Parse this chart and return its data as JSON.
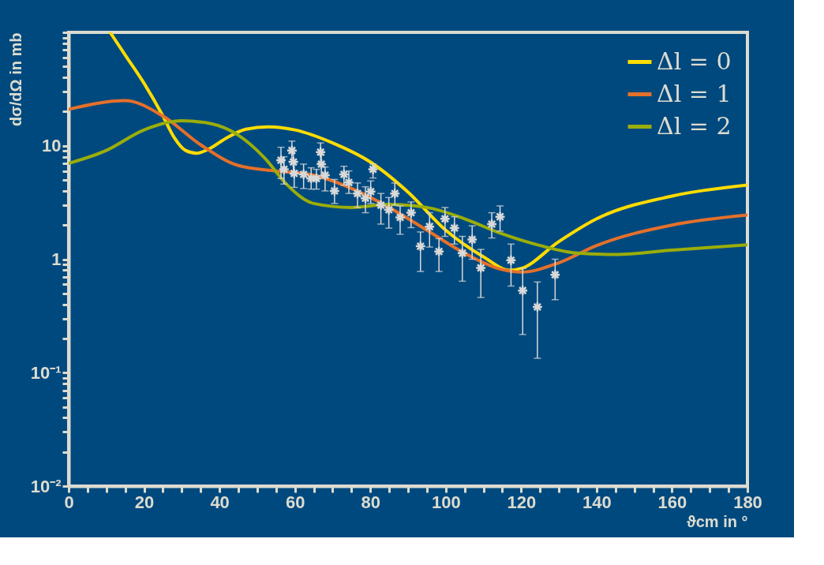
{
  "chart_data": {
    "type": "line",
    "xlabel": "ϑcm in °",
    "ylabel": "dσ/dΩ in mb",
    "log": "y",
    "legend": "top right",
    "marker": "none",
    "line_style": "solid",
    "xlim": [
      0,
      180
    ],
    "ylim": [
      0.01,
      100
    ],
    "xticks": [
      0,
      {
        "value": 5,
        "label": null
      },
      {
        "value": 10,
        "label": null
      },
      {
        "value": 15,
        "label": null
      },
      20,
      {
        "value": 25,
        "label": null
      },
      {
        "value": 30,
        "label": null
      },
      {
        "value": 35,
        "label": null
      },
      40,
      {
        "value": 45,
        "label": null
      },
      {
        "value": 50,
        "label": null
      },
      {
        "value": 55,
        "label": null
      },
      60,
      {
        "value": 65,
        "label": null
      },
      {
        "value": 70,
        "label": null
      },
      {
        "value": 75,
        "label": null
      },
      80,
      {
        "value": 85,
        "label": null
      },
      {
        "value": 90,
        "label": null
      },
      {
        "value": 95,
        "label": null
      },
      100,
      {
        "value": 105,
        "label": null
      },
      {
        "value": 110,
        "label": null
      },
      {
        "value": 115,
        "label": null
      },
      120,
      {
        "value": 125,
        "label": null
      },
      {
        "value": 130,
        "label": null
      },
      {
        "value": 135,
        "label": null
      },
      140,
      {
        "value": 145,
        "label": null
      },
      {
        "value": 150,
        "label": null
      },
      {
        "value": 155,
        "label": null
      },
      160,
      {
        "value": 165,
        "label": null
      },
      {
        "value": 170,
        "label": null
      },
      {
        "value": 175,
        "label": null
      },
      180
    ],
    "yticks": [
      {
        "value": 0.01,
        "label": "10⁻²"
      },
      {
        "value": 0.02,
        "label": null
      },
      {
        "value": 0.03,
        "label": null
      },
      {
        "value": 0.04,
        "label": null
      },
      {
        "value": 0.05,
        "label": null
      },
      {
        "value": 0.06,
        "label": null
      },
      {
        "value": 0.07,
        "label": null
      },
      {
        "value": 0.08,
        "label": null
      },
      {
        "value": 0.09,
        "label": null
      },
      {
        "value": 0.1,
        "label": "10⁻¹"
      },
      {
        "value": 0.2,
        "label": null
      },
      {
        "value": 0.3,
        "label": null
      },
      {
        "value": 0.4,
        "label": null
      },
      {
        "value": 0.5,
        "label": null
      },
      {
        "value": 0.6,
        "label": null
      },
      {
        "value": 0.7,
        "label": null
      },
      {
        "value": 0.8,
        "label": null
      },
      {
        "value": 0.9,
        "label": null
      },
      1,
      {
        "value": 2,
        "label": null
      },
      {
        "value": 3,
        "label": null
      },
      {
        "value": 4,
        "label": null
      },
      {
        "value": 5,
        "label": null
      },
      {
        "value": 6,
        "label": null
      },
      {
        "value": 7,
        "label": null
      },
      {
        "value": 8,
        "label": null
      },
      {
        "value": 9,
        "label": null
      },
      10,
      {
        "value": 20,
        "label": null
      },
      {
        "value": 30,
        "label": null
      },
      {
        "value": 40,
        "label": null
      },
      {
        "value": 50,
        "label": null
      },
      {
        "value": 60,
        "label": null
      },
      {
        "value": 70,
        "label": null
      },
      {
        "value": 80,
        "label": null
      },
      {
        "value": 90,
        "label": null
      },
      {
        "value": 100,
        "label": null
      }
    ],
    "series": [
      {
        "name": "Δl = 0",
        "type": "line",
        "color": "#ffdc00",
        "x": [
          11,
          15,
          20,
          25,
          28,
          31,
          34,
          37,
          42,
          47,
          53,
          60,
          70,
          80,
          90,
          100,
          110,
          117,
          120,
          130,
          140,
          160,
          180
        ],
        "values": [
          100,
          63,
          35.5,
          18.3,
          11.8,
          9.1,
          8.6,
          9.3,
          11.8,
          14,
          14.7,
          13.8,
          10.6,
          7.2,
          3.9,
          1.8,
          1.05,
          0.8,
          0.83,
          1.43,
          2.27,
          3.6,
          4.5
        ]
      },
      {
        "name": "Δl = 1",
        "type": "line",
        "color": "#e5702a",
        "x": [
          0,
          15,
          25,
          35,
          45,
          55,
          65,
          75,
          85,
          95,
          105,
          115,
          120,
          130,
          140,
          160,
          180
        ],
        "values": [
          21,
          25,
          18.3,
          10.2,
          6.7,
          6.0,
          5.5,
          4.2,
          2.86,
          1.8,
          1.13,
          0.81,
          0.77,
          0.93,
          1.32,
          2.0,
          2.45
        ]
      },
      {
        "name": "Δl = 2",
        "type": "line",
        "color": "#9aad0a",
        "x": [
          0,
          10,
          20,
          30,
          38,
          45,
          52,
          58,
          65,
          75,
          85,
          95,
          105,
          115,
          125,
          135,
          145,
          160,
          180
        ],
        "values": [
          7.0,
          9.1,
          13.8,
          16.6,
          15.6,
          12.4,
          7.8,
          4.5,
          3.1,
          2.86,
          3.04,
          2.86,
          2.27,
          1.67,
          1.32,
          1.13,
          1.1,
          1.2,
          1.34
        ]
      },
      {
        "type": "scatter",
        "marker": "cross",
        "color": "#d9d9d9",
        "x": [
          56.3,
          57.1,
          59.2,
          59.6,
          59.8,
          62.3,
          64.3,
          65.7,
          66.8,
          67.0,
          68.0,
          70.5,
          73.0,
          74.3,
          76.6,
          78.7,
          80.1,
          80.7,
          82.8,
          84.9,
          86.5,
          87.9,
          90.8,
          93.3,
          95.7,
          98.2,
          99.8,
          102.3,
          104.4,
          107.0,
          109.3,
          112.2,
          114.4,
          117.3,
          120.4,
          124.3,
          129.0
        ],
        "values": [
          7.46,
          6.2,
          9.1,
          7.2,
          5.7,
          5.6,
          5.15,
          5.15,
          8.8,
          6.9,
          5.5,
          4.0,
          5.6,
          4.75,
          3.8,
          3.45,
          3.95,
          6.2,
          3.0,
          2.73,
          3.8,
          2.34,
          2.57,
          1.3,
          1.94,
          1.17,
          2.27,
          1.88,
          1.13,
          1.49,
          0.84,
          2.04,
          2.37,
          0.98,
          0.53,
          0.38,
          0.73
        ],
        "errors": [
          [
            5.15,
            9.7
          ],
          [
            4.6,
            8.0
          ],
          [
            7.3,
            11.0
          ],
          [
            5.6,
            9.0
          ],
          [
            4.3,
            7.3
          ],
          [
            4.2,
            6.9
          ],
          [
            4.15,
            6.4
          ],
          [
            4.15,
            6.2
          ],
          [
            7.0,
            10.6
          ],
          [
            5.4,
            8.3
          ],
          [
            4.0,
            6.5
          ],
          [
            3.1,
            5.05
          ],
          [
            4.5,
            6.6
          ],
          [
            3.8,
            6.0
          ],
          [
            2.86,
            4.7
          ],
          [
            2.57,
            4.35
          ],
          [
            3.1,
            4.9
          ],
          [
            5.2,
            6.9
          ],
          [
            2.04,
            3.8
          ],
          [
            1.88,
            3.5
          ],
          [
            3.0,
            4.7
          ],
          [
            1.66,
            2.95
          ],
          [
            1.9,
            3.2
          ],
          [
            0.78,
            1.74
          ],
          [
            1.28,
            2.57
          ],
          [
            0.78,
            1.52
          ],
          [
            1.59,
            2.86
          ],
          [
            1.36,
            2.37
          ],
          [
            0.64,
            1.59
          ],
          [
            1.0,
            1.97
          ],
          [
            0.46,
            1.22
          ],
          [
            1.54,
            2.57
          ],
          [
            1.77,
            2.95
          ],
          [
            0.58,
            1.36
          ],
          [
            0.217,
            0.83
          ],
          [
            0.134,
            0.63
          ],
          [
            0.44,
            1.0
          ]
        ]
      }
    ]
  }
}
